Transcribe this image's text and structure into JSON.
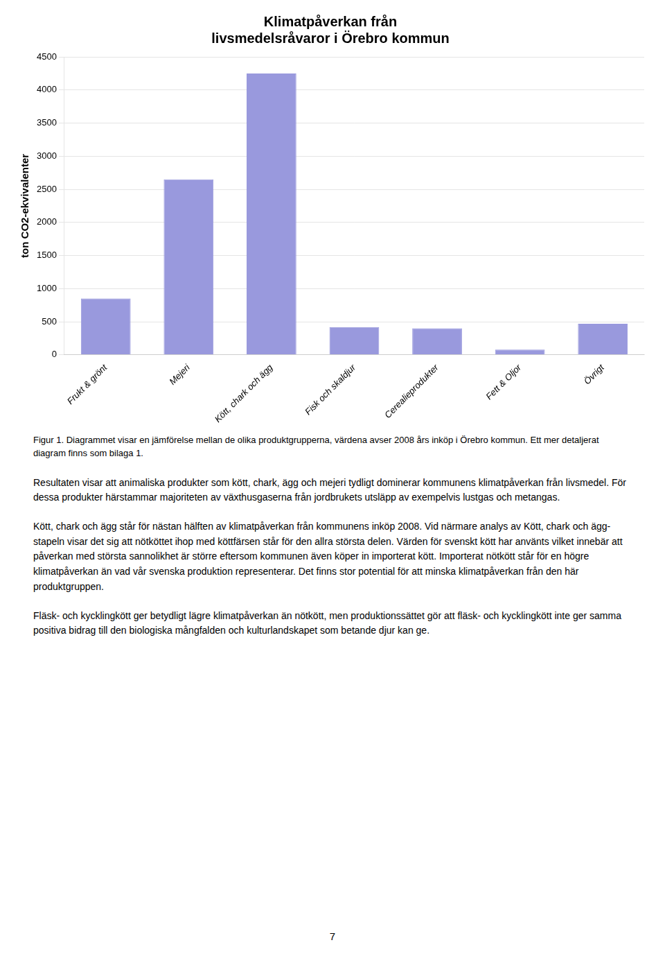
{
  "chart_data": {
    "type": "bar",
    "title": "Klimatpåverkan från\nlivsmedelsråvaror i Örebro kommun",
    "categories": [
      "Frukt & grönt",
      "Mejeri",
      "Kött, chark och ägg",
      "Fisk och skaldjur",
      "Cerealieprodukter",
      "Fett & Oljor",
      "Övrigt"
    ],
    "values": [
      850,
      2650,
      4250,
      420,
      400,
      80,
      470
    ],
    "color": "#9999dd",
    "y_label": "ton CO2-ekvivalenter",
    "ylim": [
      0,
      4500
    ],
    "yticks": [
      0,
      500,
      1000,
      1500,
      2000,
      2500,
      3000,
      3500,
      4000,
      4500
    ],
    "grid": true
  },
  "caption": "Figur 1. Diagrammet visar en jämförelse mellan de olika produktgrupperna, värdena avser 2008 års inköp i Örebro kommun. Ett mer detaljerat diagram finns som bilaga 1.",
  "paragraphs": [
    "Resultaten visar att animaliska produkter som kött, chark, ägg och mejeri tydligt dominerar kommunens klimatpåverkan från livsmedel. För dessa produkter härstammar majoriteten av växthusgaserna från jordbrukets utsläpp av exempelvis lustgas och metangas.",
    "Kött, chark och ägg står för nästan hälften av klimatpåverkan från kommunens inköp 2008. Vid närmare analys av Kött, chark och ägg-stapeln visar det sig att nötköttet ihop med köttfärsen står för den allra största delen. Värden för svenskt kött har använts vilket innebär att påverkan med största sannolikhet är större eftersom kommunen även köper in importerat kött. Importerat nötkött står för en högre klimatpåverkan än vad vår svenska produktion representerar. Det finns stor potential för att minska klimatpåverkan från den här produktgruppen.",
    "Fläsk- och kycklingkött ger betydligt lägre klimatpåverkan än nötkött, men produktionssättet gör att fläsk- och kycklingkött inte ger samma positiva bidrag till den biologiska mångfalden och kulturlandskapet som betande djur kan ge."
  ],
  "page_number": "7"
}
